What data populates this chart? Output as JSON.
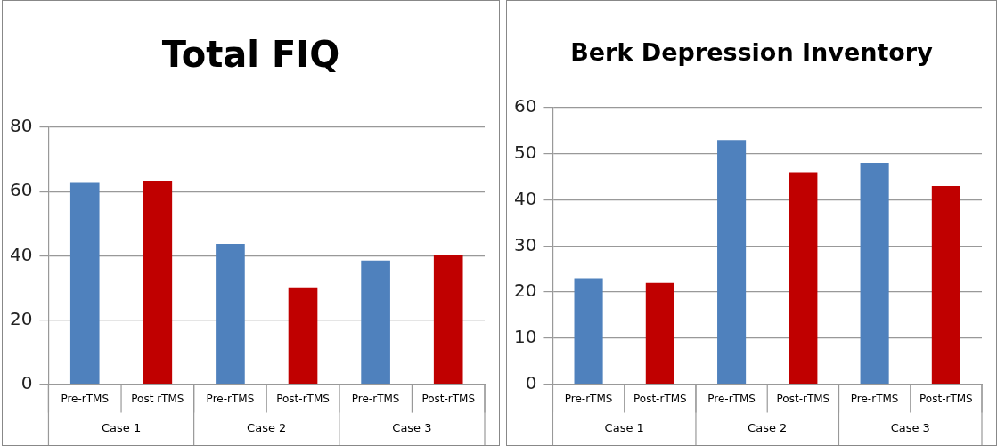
{
  "chart_data": [
    {
      "type": "bar",
      "title": "Total FIQ",
      "categories": [
        "Pre-rTMS",
        "Post rTMS",
        "Pre-rTMS",
        "Post-rTMS",
        "Pre-rTMS",
        "Post-rTMS"
      ],
      "values": [
        62.7,
        63.4,
        43.7,
        30.2,
        38.5,
        40.1
      ],
      "colors": [
        "#4f81bd",
        "#c00000",
        "#4f81bd",
        "#c00000",
        "#4f81bd",
        "#c00000"
      ],
      "ylim": [
        0,
        80
      ],
      "yticks": [
        0,
        20,
        40,
        60,
        80
      ],
      "grid": "y",
      "annotations": [
        "Case 1",
        "Case 2",
        "Case 3"
      ]
    },
    {
      "type": "bar",
      "title": "Berk Depression Inventory",
      "categories": [
        "Pre-rTMS",
        "Post-rTMS",
        "Pre-rTMS",
        "Post-rTMS",
        "Pre-rTMS",
        "Post-rTMS"
      ],
      "values": [
        23,
        22,
        53,
        46,
        48,
        43
      ],
      "colors": [
        "#4f81bd",
        "#c00000",
        "#4f81bd",
        "#c00000",
        "#4f81bd",
        "#c00000"
      ],
      "ylim": [
        0,
        60
      ],
      "yticks": [
        0,
        10,
        20,
        30,
        40,
        50,
        60
      ],
      "grid": "y",
      "annotations": [
        "Case 1",
        "Case 2",
        "Case 3"
      ]
    }
  ]
}
